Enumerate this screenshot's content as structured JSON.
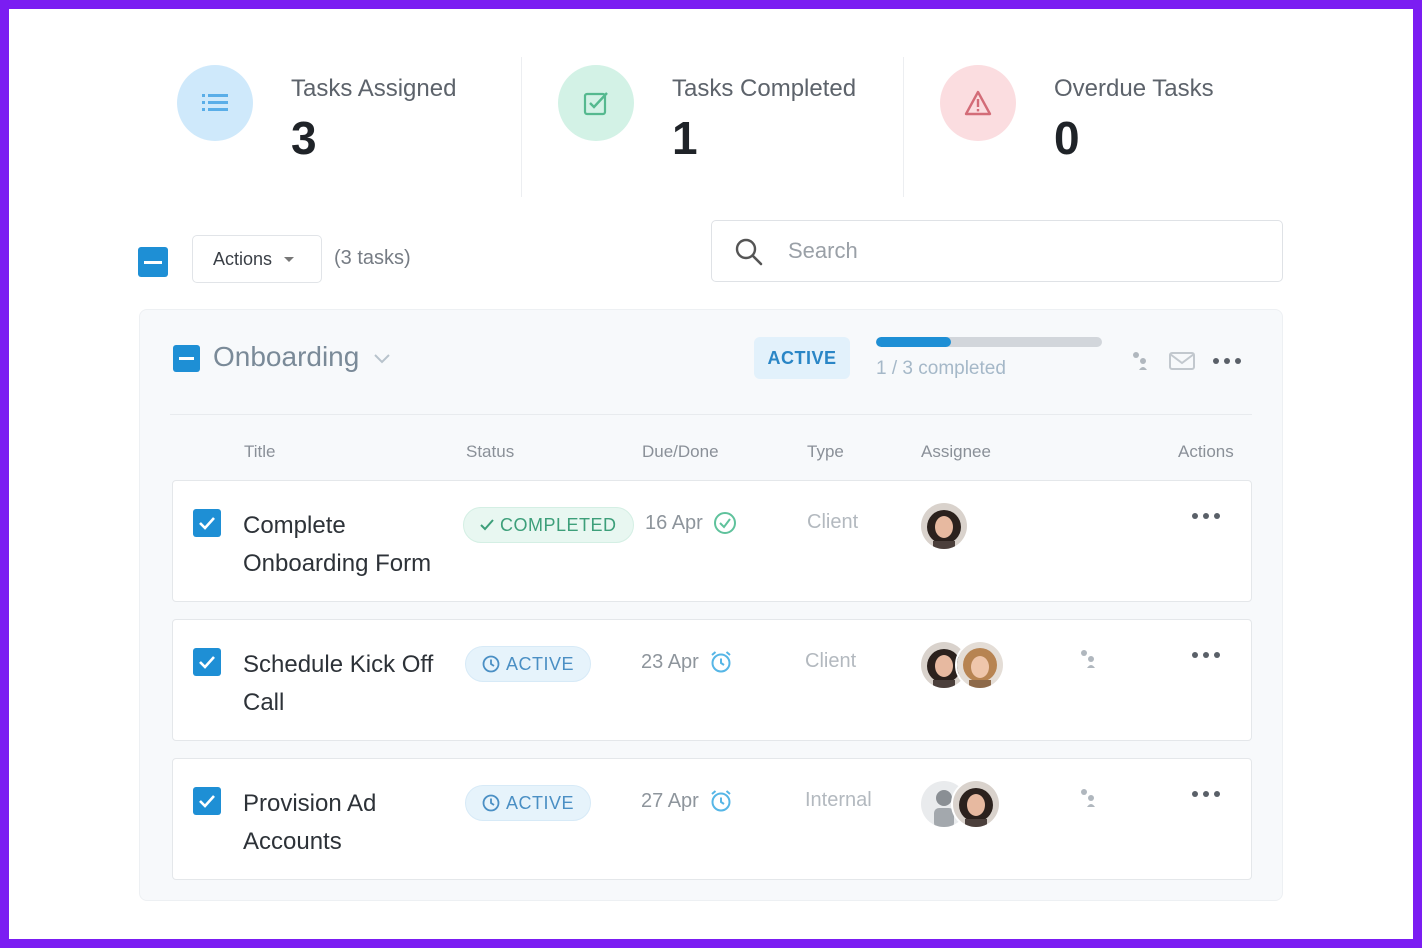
{
  "stats": [
    {
      "label": "Tasks Assigned",
      "value": "3",
      "icon": "list-icon",
      "icon_bg": "#cfe9fb",
      "icon_color": "#5aaee8"
    },
    {
      "label": "Tasks Completed",
      "value": "1",
      "icon": "check-square-icon",
      "icon_bg": "#d3f2e6",
      "icon_color": "#55b98f"
    },
    {
      "label": "Overdue Tasks",
      "value": "0",
      "icon": "warning-icon",
      "icon_bg": "#fbdde0",
      "icon_color": "#d36c78"
    }
  ],
  "toolbar": {
    "actions_label": "Actions",
    "task_count": "(3 tasks)",
    "search_placeholder": "Search"
  },
  "group": {
    "title": "Onboarding",
    "badge": "ACTIVE",
    "progress_completed_fraction": 0.333,
    "progress_text": "1 / 3 completed"
  },
  "columns": {
    "title": "Title",
    "status": "Status",
    "due": "Due/Done",
    "type": "Type",
    "assignee": "Assignee",
    "actions": "Actions"
  },
  "tasks": [
    {
      "title": "Complete Onboarding Form",
      "status": "COMPLETED",
      "due": "16 Apr",
      "due_icon": "check-circle-icon",
      "type": "Client"
    },
    {
      "title": "Schedule Kick Off Call",
      "status": "ACTIVE",
      "due": "23 Apr",
      "due_icon": "alarm-clock-icon",
      "type": "Client"
    },
    {
      "title": "Provision Ad Accounts",
      "status": "ACTIVE",
      "due": "27 Apr",
      "due_icon": "alarm-clock-icon",
      "type": "Internal"
    }
  ],
  "colors": {
    "accent": "#1e8fd5",
    "frame": "#7b1df2",
    "completed": "#3d9f7a",
    "active": "#4a8fc4"
  }
}
